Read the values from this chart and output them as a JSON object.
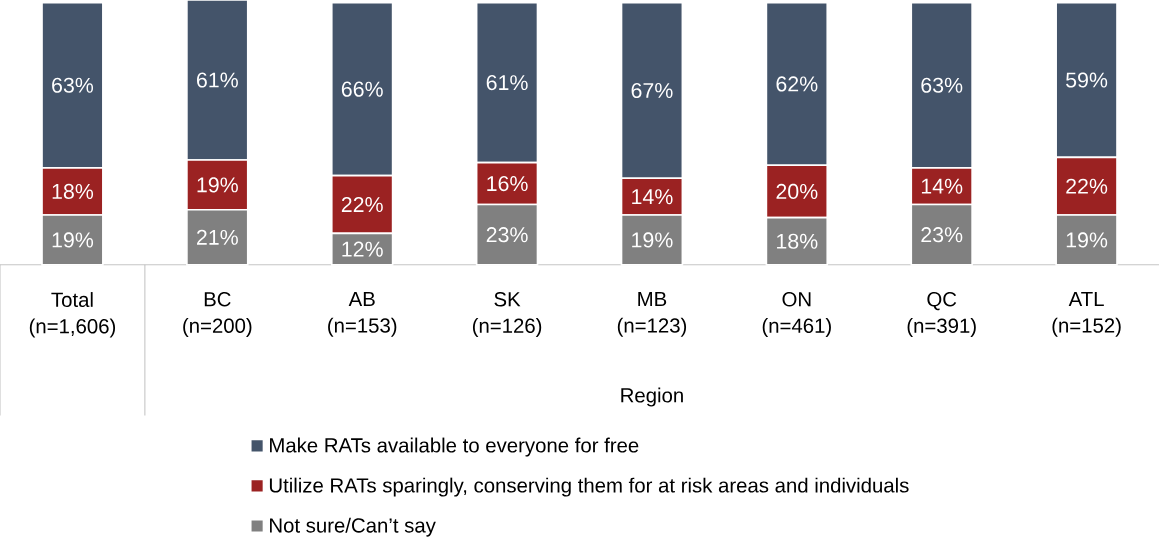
{
  "chart_data": {
    "type": "bar",
    "stacked": true,
    "categories": [
      "Total (n=1,606)",
      "BC (n=200)",
      "AB (n=153)",
      "SK (n=126)",
      "MB (n=123)",
      "ON (n=461)",
      "QC (n=391)",
      "ATL (n=152)"
    ],
    "series": [
      {
        "name": "Not sure/Can’t say",
        "color": "#808080",
        "values": [
          19,
          21,
          12,
          23,
          19,
          18,
          23,
          19
        ],
        "value_labels": [
          "19%",
          "21%",
          "12%",
          "23%",
          "19%",
          "18%",
          "23%",
          "19%"
        ]
      },
      {
        "name": "Utilize RATs sparingly, conserving them for at risk areas and individuals",
        "color": "#9b2222",
        "values": [
          18,
          19,
          22,
          16,
          14,
          20,
          14,
          22
        ],
        "value_labels": [
          "18%",
          "19%",
          "22%",
          "16%",
          "14%",
          "20%",
          "14%",
          "22%"
        ]
      },
      {
        "name": "Make RATs available to everyone for free",
        "color": "#44546a",
        "values": [
          63,
          61,
          66,
          61,
          67,
          62,
          63,
          59
        ],
        "value_labels": [
          "63%",
          "61%",
          "66%",
          "61%",
          "67%",
          "62%",
          "63%",
          "59%"
        ]
      }
    ],
    "annotations": [
      "Region"
    ],
    "legend": "bottom"
  }
}
